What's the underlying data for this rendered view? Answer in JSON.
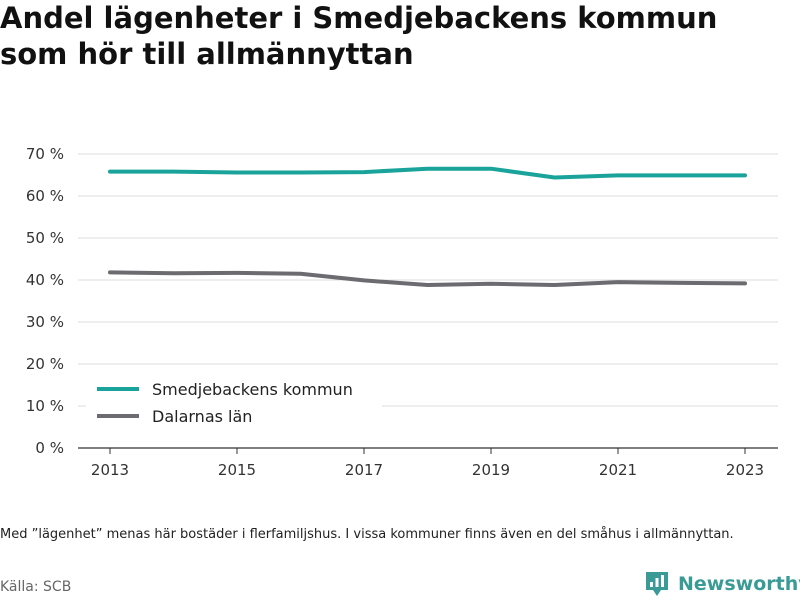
{
  "title_lines": [
    "Andel lägenheter i Smedjebackens kommun",
    "som hör till allmännyttan"
  ],
  "footnote": "Med ”lägenhet” menas här bostäder i flerfamiljshus. I vissa kommuner finns även en del småhus i allmännyttan.",
  "source": "Källa: SCB",
  "brand": {
    "name": "Newsworthy",
    "icon": "newsworthy-logo-icon"
  },
  "chart_data": {
    "type": "line",
    "title": "Andel lägenheter i Smedjebackens kommun som hör till allmännyttan",
    "x": [
      2013,
      2014,
      2015,
      2016,
      2017,
      2018,
      2019,
      2020,
      2021,
      2022,
      2023
    ],
    "x_ticks": [
      2013,
      2015,
      2017,
      2019,
      2021,
      2023
    ],
    "y_ticks": [
      0,
      10,
      20,
      30,
      40,
      50,
      60,
      70
    ],
    "y_tick_labels": [
      "0 %",
      "10 %",
      "20 %",
      "30 %",
      "40 %",
      "50 %",
      "60 %",
      "70 %"
    ],
    "ylim": [
      0,
      70
    ],
    "grid": true,
    "legend_position": "bottom-left",
    "series": [
      {
        "name": "Smedjebackens kommun",
        "color": "#1aa39a",
        "values": [
          65.8,
          65.8,
          65.6,
          65.6,
          65.7,
          66.5,
          66.5,
          64.4,
          64.9,
          64.9,
          64.9
        ]
      },
      {
        "name": "Dalarnas län",
        "color": "#6b6b70",
        "values": [
          41.8,
          41.6,
          41.7,
          41.5,
          39.9,
          38.8,
          39.1,
          38.8,
          39.5,
          39.3,
          39.2
        ]
      }
    ]
  }
}
